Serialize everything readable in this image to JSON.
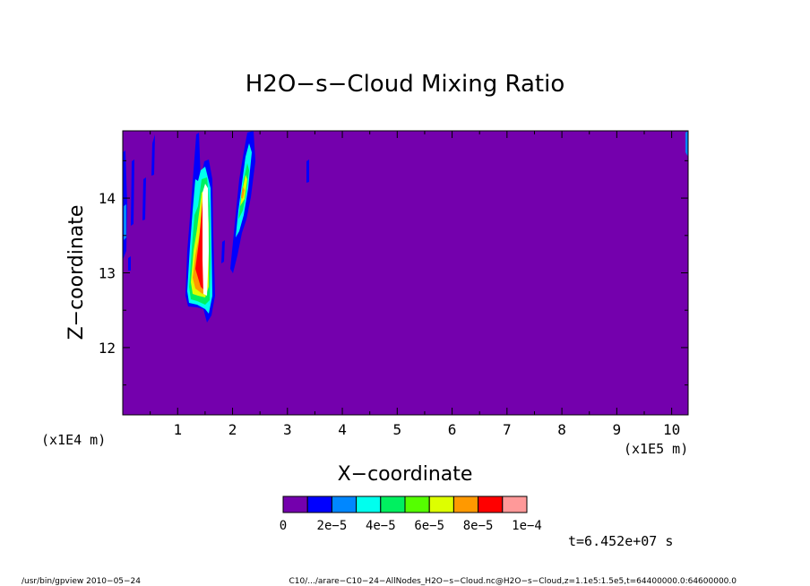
{
  "chart_data": {
    "type": "heatmap",
    "title": "H2O−s−Cloud Mixing Ratio",
    "xlabel": "X−coordinate",
    "ylabel": "Z−coordinate",
    "x_unit": "(x1E5 m)",
    "y_unit": "(x1E4 m)",
    "xlim": [
      0,
      10.3
    ],
    "ylim": [
      11.1,
      14.9
    ],
    "x_ticks": [
      1,
      2,
      3,
      4,
      5,
      6,
      7,
      8,
      9,
      10
    ],
    "y_ticks": [
      12,
      13,
      14
    ],
    "background_value": 0,
    "colorbar": {
      "colors": [
        "#7400ad",
        "#0000ff",
        "#0087ff",
        "#00ffee",
        "#00f060",
        "#55ff00",
        "#ddff00",
        "#ff9900",
        "#ff0000",
        "#ff9999"
      ],
      "tick_labels": [
        "0",
        "2e−5",
        "4e−5",
        "6e−5",
        "8e−5",
        "1e−4"
      ]
    },
    "features": [
      {
        "x": 1.55,
        "z": 13.3,
        "level": "1e−4",
        "note": "core plume x≈1.4–1.7, z≈12.4–14.5"
      },
      {
        "x": 1.3,
        "z": 13.0,
        "level": "6e−5"
      },
      {
        "x": 2.2,
        "z": 14.0,
        "level": "6e−5"
      },
      {
        "x": 0.2,
        "z": 14.0,
        "level": "2e−5"
      },
      {
        "x": 3.4,
        "z": 14.3,
        "level": "2e−5"
      }
    ]
  },
  "time_label": "t=6.452e+07 s",
  "footer": {
    "left": "/usr/bin/gpview   2010−05−24",
    "right": "C10/.../arare−C10−24−AllNodes_H2O−s−Cloud.nc@H2O−s−Cloud,z=1.1e5:1.5e5,t=64400000.0:64600000.0"
  }
}
